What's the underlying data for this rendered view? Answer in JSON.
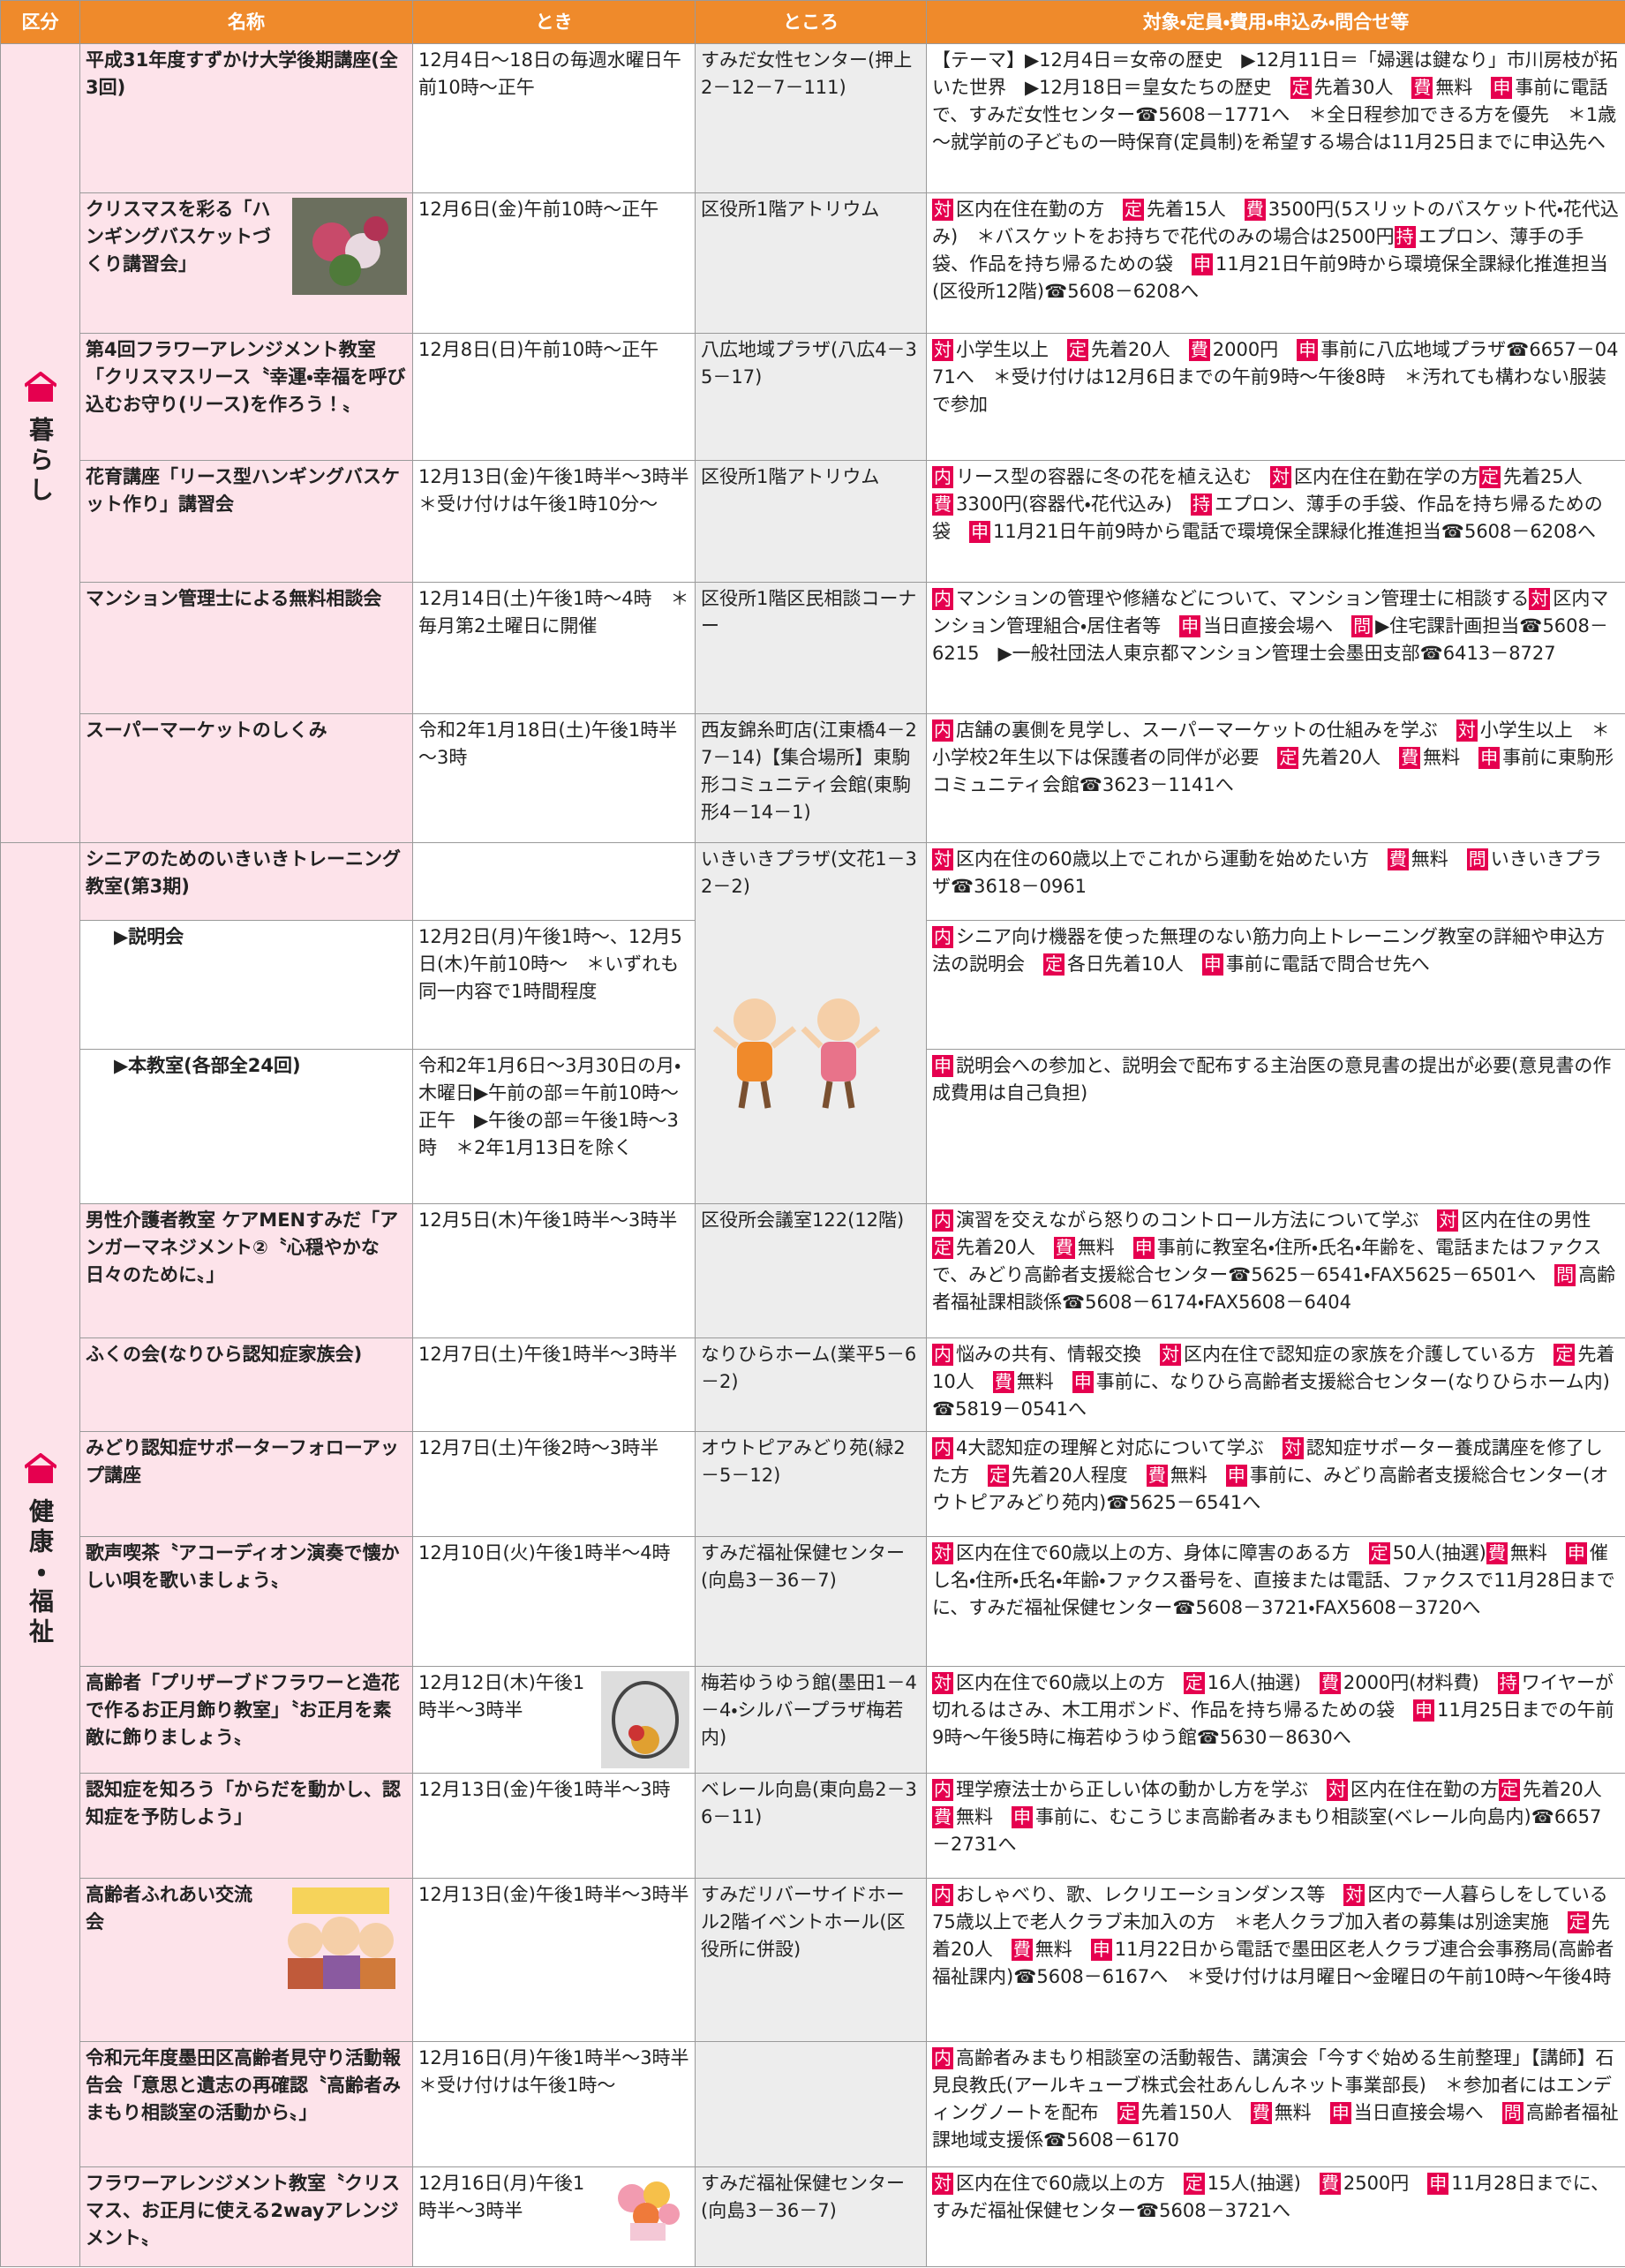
{
  "header": [
    "区分",
    "名称",
    "とき",
    "ところ",
    "対象・定員・費用・申込み・問合せ等"
  ],
  "sections": [
    {
      "label": "暮らし",
      "rows": [
        {
          "name": "平成31年度すずかけ大学後期講座(全3回)",
          "time": "12月4日～18日の毎週水曜日午前10時～正午",
          "place": "すみだ女性センター(押上2－12－7－111)",
          "details": [
            "【テーマ】▶12月4日＝女帝の歴史　▶12月11日＝「婦選は鍵なり」市川房枝が拓いた世界　▶12月18日＝皇女たちの歴史　",
            {
              "badge": "定"
            },
            "先着30人　",
            {
              "badge": "費"
            },
            "無料　",
            {
              "badge": "申"
            },
            "事前に電話で、すみだ女性センター☎5608－1771へ　＊全日程参加できる方を優先　＊1歳～就学前の子どもの一時保育(定員制)を希望する場合は11月25日までに申込先へ"
          ]
        },
        {
          "name": "クリスマスを彩る「ハンギングバスケットづくり講習会」",
          "time": "12月6日(金)午前10時～正午",
          "place": "区役所1階アトリウム",
          "details": [
            {
              "badge": "対"
            },
            "区内在住在勤の方　",
            {
              "badge": "定"
            },
            "先着15人　",
            {
              "badge": "費"
            },
            "3500円(5スリットのバスケット代・花代込み)　＊バスケットをお持ちで花代のみの場合は2500円",
            {
              "badge": "持"
            },
            "エプロン、薄手の手袋、作品を持ち帰るための袋　",
            {
              "badge": "申"
            },
            "11月21日午前9時から環境保全課緑化推進担当(区役所12階)☎5608－6208へ"
          ]
        },
        {
          "name": "第4回フラワーアレンジメント教室「クリスマスリース〝幸運・幸福を呼び込むお守り(リース)を作ろう！〟",
          "time": "12月8日(日)午前10時～正午",
          "place": "八広地域プラザ(八広4－35－17)",
          "details": [
            {
              "badge": "対"
            },
            "小学生以上　",
            {
              "badge": "定"
            },
            "先着20人　",
            {
              "badge": "費"
            },
            "2000円　",
            {
              "badge": "申"
            },
            "事前に八広地域プラザ☎6657－0471へ　＊受け付けは12月6日までの午前9時～午後8時　＊汚れても構わない服装で参加"
          ]
        },
        {
          "name": "花育講座「リース型ハンギングバスケット作り」講習会",
          "time": "12月13日(金)午後1時半～3時半　＊受け付けは午後1時10分～",
          "place": "区役所1階アトリウム",
          "details": [
            {
              "badge": "内"
            },
            "リース型の容器に冬の花を植え込む　",
            {
              "badge": "対"
            },
            "区内在住在勤在学の方",
            {
              "badge": "定"
            },
            "先着25人　",
            {
              "badge": "費"
            },
            "3300円(容器代・花代込み)　",
            {
              "badge": "持"
            },
            "エプロン、薄手の手袋、作品を持ち帰るための袋　",
            {
              "badge": "申"
            },
            "11月21日午前9時から電話で環境保全課緑化推進担当☎5608－6208へ"
          ]
        },
        {
          "name": "マンション管理士による無料相談会",
          "time": "12月14日(土)午後1時～4時　＊毎月第2土曜日に開催",
          "place": "区役所1階区民相談コーナー",
          "details": [
            {
              "badge": "内"
            },
            "マンションの管理や修繕などについて、マンション管理士に相談する",
            {
              "badge": "対"
            },
            "区内マンション管理組合・居住者等　",
            {
              "badge": "申"
            },
            "当日直接会場へ　",
            {
              "badge": "問"
            },
            "▶住宅課計画担当☎5608－6215　▶一般社団法人東京都マンション管理士会墨田支部☎6413－8727"
          ]
        },
        {
          "name": "スーパーマーケットのしくみ",
          "time": "令和2年1月18日(土)午後1時半～3時",
          "place": "西友錦糸町店(江東橋4－27－14)【集合場所】東駒形コミュニティ会館(東駒形4－14－1)",
          "details": [
            {
              "badge": "内"
            },
            "店舗の裏側を見学し、スーパーマーケットの仕組みを学ぶ　",
            {
              "badge": "対"
            },
            "小学生以上　＊小学校2年生以下は保護者の同伴が必要　",
            {
              "badge": "定"
            },
            "先着20人　",
            {
              "badge": "費"
            },
            "無料　",
            {
              "badge": "申"
            },
            "事前に東駒形コミュニティ会館☎3623－1141へ"
          ]
        }
      ]
    },
    {
      "label": "健康・福祉",
      "rows": [
        {
          "name": "シニアのためのいきいきトレーニング教室(第3期)",
          "place": "いきいきプラザ(文花1－32－2)",
          "details": [
            {
              "badge": "対"
            },
            "区内在住の60歳以上でこれから運動を始めたい方　",
            {
              "badge": "費"
            },
            "無料　",
            {
              "badge": "問"
            },
            "いきいきプラザ☎3618－0961"
          ],
          "subrows": [
            {
              "name": "▶説明会",
              "time": "12月2日(月)午後1時～、12月5日(木)午前10時～　＊いずれも同一内容で1時間程度",
              "details": [
                {
                  "badge": "内"
                },
                "シニア向け機器を使った無理のない筋力向上トレーニング教室の詳細や申込方法の説明会　",
                {
                  "badge": "定"
                },
                "各日先着10人　",
                {
                  "badge": "申"
                },
                "事前に電話で問合せ先へ"
              ]
            },
            {
              "name": "▶本教室(各部全24回)",
              "time": "令和2年1月6日～3月30日の月・木曜日▶午前の部＝午前10時～正午　▶午後の部＝午後1時～3時　＊2年1月13日を除く",
              "details": [
                {
                  "badge": "申"
                },
                "説明会への参加と、説明会で配布する主治医の意見書の提出が必要(意見書の作成費用は自己負担)"
              ]
            }
          ]
        },
        {
          "name": "男性介護者教室 ケアMENすみだ「アンガーマネジメント②〝心穏やかな日々のために〟」",
          "time": "12月5日(木)午後1時半～3時半",
          "place": "区役所会議室122(12階)",
          "details": [
            {
              "badge": "内"
            },
            "演習を交えながら怒りのコントロール方法について学ぶ　",
            {
              "badge": "対"
            },
            "区内在住の男性　",
            {
              "badge": "定"
            },
            "先着20人　",
            {
              "badge": "費"
            },
            "無料　",
            {
              "badge": "申"
            },
            "事前に教室名・住所・氏名・年齢を、電話またはファクスで、みどり高齢者支援総合センター☎5625－6541・FAX5625－6501へ　",
            {
              "badge": "問"
            },
            "高齢者福祉課相談係☎5608－6174・FAX5608－6404"
          ]
        },
        {
          "name": "ふくの会(なりひら認知症家族会)",
          "time": "12月7日(土)午後1時半～3時半",
          "place": "なりひらホーム(業平5－6－2)",
          "details": [
            {
              "badge": "内"
            },
            "悩みの共有、情報交換　",
            {
              "badge": "対"
            },
            "区内在住で認知症の家族を介護している方　",
            {
              "badge": "定"
            },
            "先着10人　",
            {
              "badge": "費"
            },
            "無料　",
            {
              "badge": "申"
            },
            "事前に、なりひら高齢者支援総合センター(なりひらホーム内)☎5819－0541へ"
          ]
        },
        {
          "name": "みどり認知症サポーターフォローアップ講座",
          "time": "12月7日(土)午後2時～3時半",
          "place": "オウトピアみどり苑(緑2－5－12)",
          "details": [
            {
              "badge": "内"
            },
            "4大認知症の理解と対応について学ぶ　",
            {
              "badge": "対"
            },
            "認知症サポーター養成講座を修了した方　",
            {
              "badge": "定"
            },
            "先着20人程度　",
            {
              "badge": "費"
            },
            "無料　",
            {
              "badge": "申"
            },
            "事前に、みどり高齢者支援総合センター(オウトピアみどり苑内)☎5625－6541へ"
          ]
        },
        {
          "name": "歌声喫茶〝アコーディオン演奏で懐かしい唄を歌いましょう〟",
          "time": "12月10日(火)午後1時半～4時",
          "place": "すみだ福祉保健センター(向島3－36－7)",
          "details": [
            {
              "badge": "対"
            },
            "区内在住で60歳以上の方、身体に障害のある方　",
            {
              "badge": "定"
            },
            "50人(抽選)",
            {
              "badge": "費"
            },
            "無料　",
            {
              "badge": "申"
            },
            "催し名・住所・氏名・年齢・ファクス番号を、直接または電話、ファクスで11月28日までに、すみだ福祉保健センター☎5608－3721・FAX5608－3720へ"
          ]
        },
        {
          "name": "高齢者「プリザーブドフラワーと造花で作るお正月飾り教室」〝お正月を素敵に飾りましょう〟",
          "time": "12月12日(木)午後1時半～3時半",
          "place": "梅若ゆうゆう館(墨田1－4－4・シルバープラザ梅若内)",
          "details": [
            {
              "badge": "対"
            },
            "区内在住で60歳以上の方　",
            {
              "badge": "定"
            },
            "16人(抽選)　",
            {
              "badge": "費"
            },
            "2000円(材料費)　",
            {
              "badge": "持"
            },
            "ワイヤーが切れるはさみ、木工用ボンド、作品を持ち帰るための袋　",
            {
              "badge": "申"
            },
            "11月25日までの午前9時～午後5時に梅若ゆうゆう館☎5630－8630へ"
          ]
        },
        {
          "name": "認知症を知ろう「からだを動かし、認知症を予防しよう」",
          "time": "12月13日(金)午後1時半～3時",
          "place": "ベレール向島(東向島2－36－11)",
          "details": [
            {
              "badge": "内"
            },
            "理学療法士から正しい体の動かし方を学ぶ　",
            {
              "badge": "対"
            },
            "区内在住在勤の方",
            {
              "badge": "定"
            },
            "先着20人　",
            {
              "badge": "費"
            },
            "無料　",
            {
              "badge": "申"
            },
            "事前に、むこうじま高齢者みまもり相談室(ベレール向島内)☎6657－2731へ"
          ]
        },
        {
          "name": "高齢者ふれあい交流会",
          "time": "12月13日(金)午後1時半～3時半",
          "place": "すみだリバーサイドホール2階イベントホール(区役所に併設)",
          "details": [
            {
              "badge": "内"
            },
            "おしゃべり、歌、レクリエーションダンス等　",
            {
              "badge": "対"
            },
            "区内で一人暮らしをしている75歳以上で老人クラブ未加入の方　＊老人クラブ加入者の募集は別途実施　",
            {
              "badge": "定"
            },
            "先着20人　",
            {
              "badge": "費"
            },
            "無料　",
            {
              "badge": "申"
            },
            "11月22日から電話で墨田区老人クラブ連合会事務局(高齢者福祉課内)☎5608－6167へ　＊受け付けは月曜日～金曜日の午前10時～午後4時"
          ]
        },
        {
          "name": "令和元年度墨田区高齢者見守り活動報告会「意思と遺志の再確認〝高齢者みまもり相談室の活動から〟」",
          "time": "12月16日(月)午後1時半～3時半　＊受け付けは午後1時～",
          "details": [
            {
              "badge": "内"
            },
            "高齢者みまもり相談室の活動報告、講演会「今すぐ始める生前整理」【講師】石見良教氏(アールキューブ株式会社あんしんネット事業部長)　＊参加者にはエンディングノートを配布　",
            {
              "badge": "定"
            },
            "先着150人　",
            {
              "badge": "費"
            },
            "無料　",
            {
              "badge": "申"
            },
            "当日直接会場へ　",
            {
              "badge": "問"
            },
            "高齢者福祉課地域支援係☎5608－6170"
          ]
        },
        {
          "name": "フラワーアレンジメント教室〝クリスマス、お正月に使える2wayアレンジメント〟",
          "time": "12月16日(月)午後1時半～3時半",
          "place": "すみだ福祉保健センター(向島3－36－7)",
          "details": [
            {
              "badge": "対"
            },
            "区内在住で60歳以上の方　",
            {
              "badge": "定"
            },
            "15人(抽選)　",
            {
              "badge": "費"
            },
            "2500円　",
            {
              "badge": "申"
            },
            "11月28日までに、すみだ福祉保健センター☎5608－3721へ"
          ]
        }
      ]
    }
  ]
}
